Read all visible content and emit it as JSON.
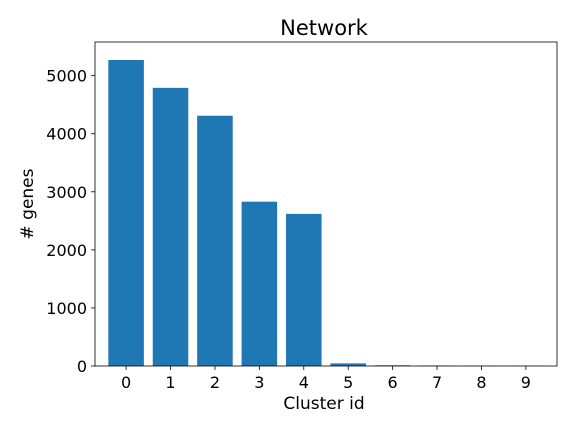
{
  "chart_data": {
    "type": "bar",
    "title": "Network",
    "xlabel": "Cluster id",
    "ylabel": "# genes",
    "categories": [
      "0",
      "1",
      "2",
      "3",
      "4",
      "5",
      "6",
      "7",
      "8",
      "9"
    ],
    "values": [
      5270,
      4790,
      4310,
      2830,
      2620,
      45,
      12,
      8,
      5,
      4
    ],
    "ylim": [
      0,
      5580
    ],
    "yticks": [
      0,
      1000,
      2000,
      3000,
      4000,
      5000
    ],
    "bar_color": "#1f77b4",
    "grid": false,
    "legend": "none"
  }
}
